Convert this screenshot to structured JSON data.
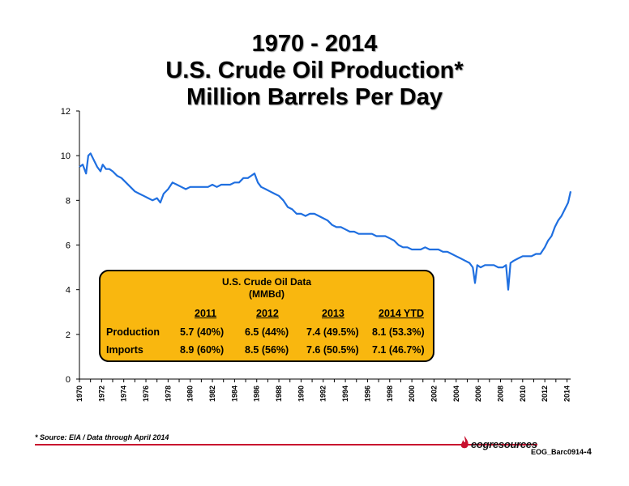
{
  "title": {
    "line1": "1970 - 2014",
    "line2": "U.S. Crude Oil Production*",
    "line3": "Million Barrels Per Day"
  },
  "chart_data": {
    "type": "line",
    "title": "1970 - 2014 U.S. Crude Oil Production* Million Barrels Per Day",
    "ylim": [
      0,
      12
    ],
    "yticks": [
      0,
      2,
      4,
      6,
      8,
      10,
      12
    ],
    "xlim": [
      1970,
      2014.33
    ],
    "xticks": [
      "1970",
      "1972",
      "1974",
      "1976",
      "1978",
      "1980",
      "1982",
      "1984",
      "1986",
      "1988",
      "1990",
      "1992",
      "1994",
      "1996",
      "1998",
      "2000",
      "2002",
      "2004",
      "2006",
      "2008",
      "2010",
      "2012",
      "2014"
    ],
    "grid": false,
    "color": "#1F6FE0",
    "series": [
      {
        "x": [
          1970.0,
          1970.3,
          1970.6,
          1970.8,
          1971.0,
          1971.3,
          1971.6,
          1971.9,
          1972.1,
          1972.4,
          1972.7,
          1973.0,
          1973.4,
          1973.8,
          1974.2,
          1974.6,
          1975.0,
          1975.4,
          1975.8,
          1976.2,
          1976.6,
          1977.0,
          1977.3,
          1977.6,
          1978.0,
          1978.4,
          1978.8,
          1979.2,
          1979.6,
          1980.0,
          1980.4,
          1980.8,
          1981.2,
          1981.6,
          1982.0,
          1982.4,
          1982.8,
          1983.2,
          1983.6,
          1984.0,
          1984.4,
          1984.8,
          1985.2,
          1985.5,
          1985.8,
          1986.1,
          1986.4,
          1986.8,
          1987.2,
          1987.6,
          1988.0,
          1988.4,
          1988.8,
          1989.2,
          1989.6,
          1990.0,
          1990.4,
          1990.8,
          1991.2,
          1991.6,
          1992.0,
          1992.4,
          1992.8,
          1993.2,
          1993.6,
          1994.0,
          1994.4,
          1994.8,
          1995.2,
          1995.6,
          1996.0,
          1996.4,
          1996.8,
          1997.2,
          1997.6,
          1998.0,
          1998.4,
          1998.8,
          1999.2,
          1999.6,
          2000.0,
          2000.4,
          2000.8,
          2001.2,
          2001.6,
          2002.0,
          2002.4,
          2002.8,
          2003.2,
          2003.6,
          2004.0,
          2004.4,
          2004.8,
          2005.2,
          2005.5,
          2005.7,
          2005.9,
          2006.2,
          2006.6,
          2007.0,
          2007.4,
          2007.8,
          2008.2,
          2008.5,
          2008.7,
          2008.9,
          2009.2,
          2009.6,
          2010.0,
          2010.4,
          2010.8,
          2011.2,
          2011.6,
          2012.0,
          2012.3,
          2012.6,
          2012.9,
          2013.2,
          2013.5,
          2013.8,
          2014.1,
          2014.33
        ],
        "y": [
          9.5,
          9.6,
          9.2,
          10.0,
          10.1,
          9.8,
          9.5,
          9.3,
          9.6,
          9.4,
          9.4,
          9.3,
          9.1,
          9.0,
          8.8,
          8.6,
          8.4,
          8.3,
          8.2,
          8.1,
          8.0,
          8.1,
          7.9,
          8.3,
          8.5,
          8.8,
          8.7,
          8.6,
          8.5,
          8.6,
          8.6,
          8.6,
          8.6,
          8.6,
          8.7,
          8.6,
          8.7,
          8.7,
          8.7,
          8.8,
          8.8,
          9.0,
          9.0,
          9.1,
          9.2,
          8.8,
          8.6,
          8.5,
          8.4,
          8.3,
          8.2,
          8.0,
          7.7,
          7.6,
          7.4,
          7.4,
          7.3,
          7.4,
          7.4,
          7.3,
          7.2,
          7.1,
          6.9,
          6.8,
          6.8,
          6.7,
          6.6,
          6.6,
          6.5,
          6.5,
          6.5,
          6.5,
          6.4,
          6.4,
          6.4,
          6.3,
          6.2,
          6.0,
          5.9,
          5.9,
          5.8,
          5.8,
          5.8,
          5.9,
          5.8,
          5.8,
          5.8,
          5.7,
          5.7,
          5.6,
          5.5,
          5.4,
          5.3,
          5.2,
          5.0,
          4.3,
          5.1,
          5.0,
          5.1,
          5.1,
          5.1,
          5.0,
          5.0,
          5.1,
          4.0,
          5.2,
          5.3,
          5.4,
          5.5,
          5.5,
          5.5,
          5.6,
          5.6,
          5.9,
          6.2,
          6.4,
          6.8,
          7.1,
          7.3,
          7.6,
          7.9,
          8.4
        ]
      }
    ]
  },
  "databox": {
    "title1": "U.S. Crude Oil Data",
    "title2": "(MMBd)",
    "headers": [
      "2011",
      "2012",
      "2013",
      "2014 YTD"
    ],
    "rows": [
      {
        "label": "Production",
        "values": [
          "5.7 (40%)",
          "6.5 (44%)",
          "7.4 (49.5%)",
          "8.1 (53.3%)"
        ]
      },
      {
        "label": "Imports",
        "values": [
          "8.9 (60%)",
          "8.5 (56%)",
          "7.6 (50.5%)",
          "7.1 (46.7%)"
        ]
      }
    ]
  },
  "footer": {
    "source": "* Source: EIA / Data through April 2014",
    "logo_text": "eogresources",
    "doc_id": "EOG_Barc0914",
    "page": "-4"
  }
}
